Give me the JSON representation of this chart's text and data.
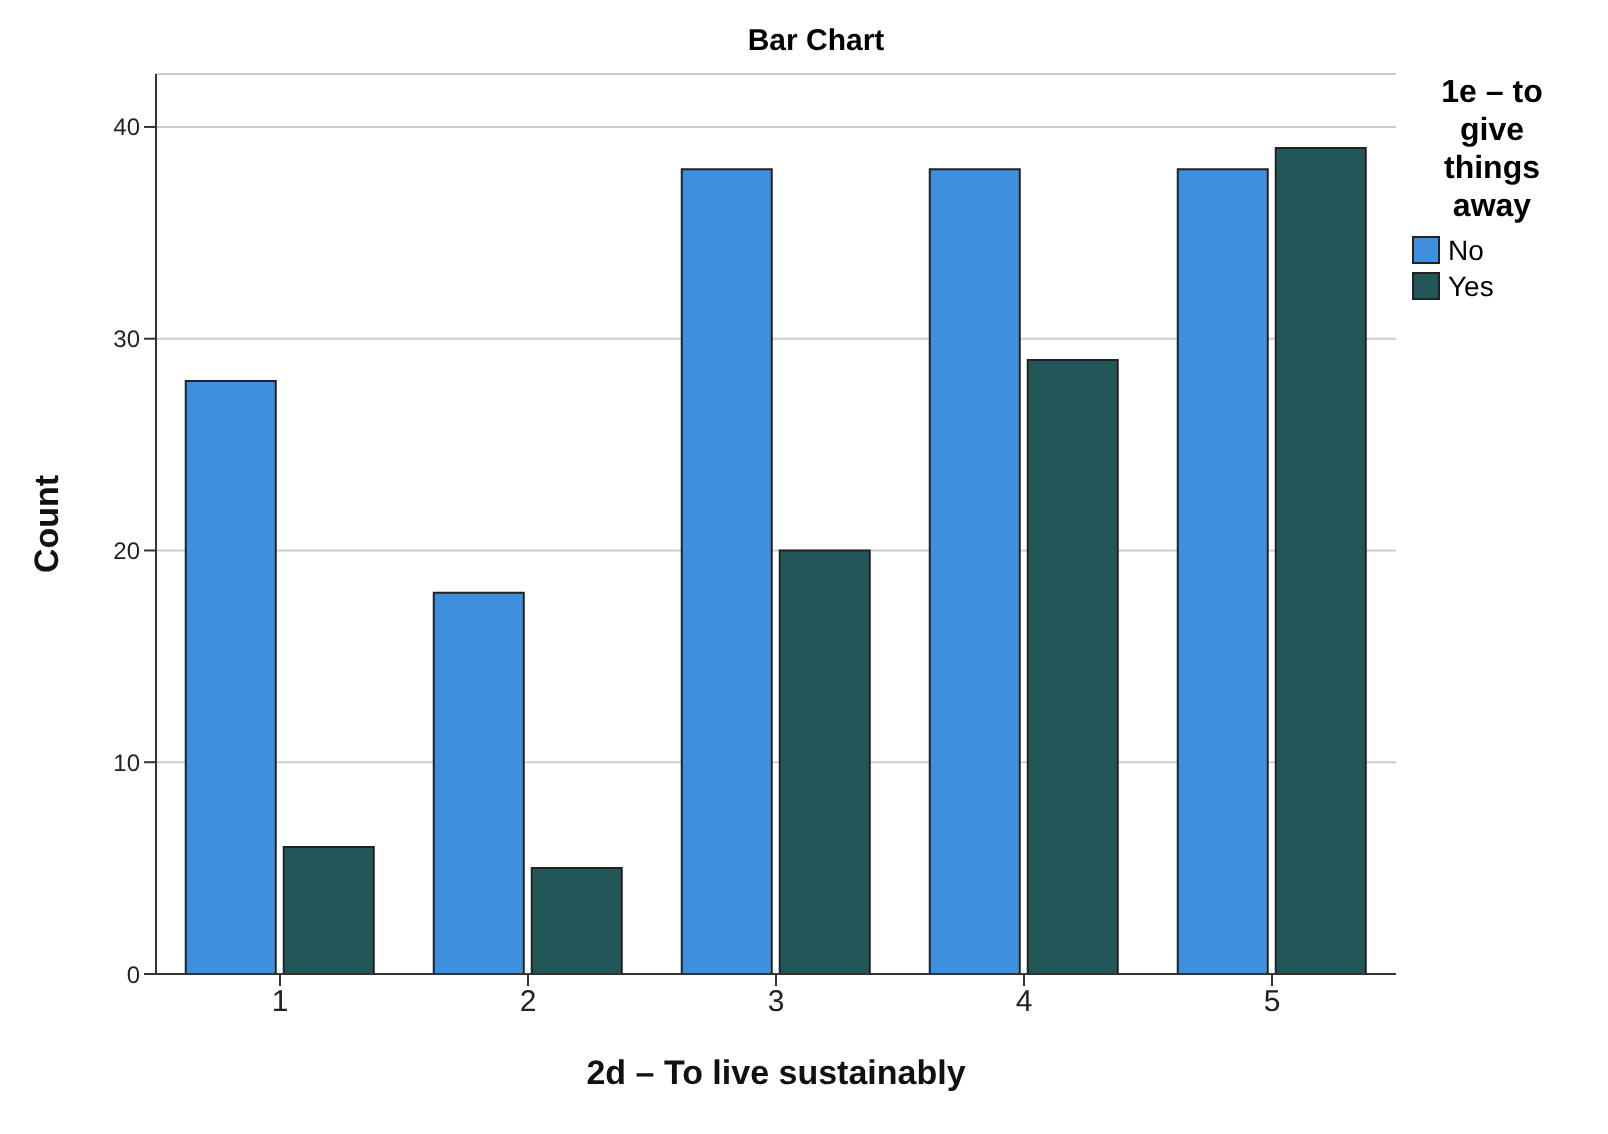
{
  "chart_data": {
    "type": "bar",
    "title": "Bar Chart",
    "xlabel": "2d – To live sustainably",
    "ylabel": "Count",
    "legend_title": "1e – to give things away",
    "categories": [
      "1",
      "2",
      "3",
      "4",
      "5"
    ],
    "series": [
      {
        "name": "No",
        "color": "#3f8fdf",
        "values": [
          28,
          18,
          38,
          38,
          38
        ]
      },
      {
        "name": "Yes",
        "color": "#22575a",
        "values": [
          6,
          5,
          20,
          29,
          39
        ]
      }
    ],
    "ylim": [
      0,
      42.5
    ],
    "yticks": [
      0,
      10,
      20,
      30,
      40
    ],
    "grid": "y",
    "legend": "right"
  }
}
